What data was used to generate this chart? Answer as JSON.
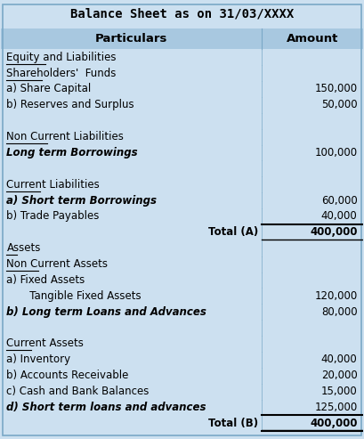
{
  "title": "Balance Sheet as on 31/03/XXXX",
  "headers": [
    "Particulars",
    "Amount"
  ],
  "rows": [
    {
      "label": "Equity and Liabilities",
      "value": "",
      "style": "underline",
      "indent": 0
    },
    {
      "label": "Shareholders'  Funds",
      "value": "",
      "style": "underline",
      "indent": 0
    },
    {
      "label": "a) Share Capital",
      "value": "150,000",
      "style": "normal",
      "indent": 0
    },
    {
      "label": "b) Reserves and Surplus",
      "value": "50,000",
      "style": "normal",
      "indent": 0
    },
    {
      "label": "",
      "value": "",
      "style": "normal",
      "indent": 0
    },
    {
      "label": "Non Current Liabilities",
      "value": "",
      "style": "underline",
      "indent": 0
    },
    {
      "label": "Long term Borrowings",
      "value": "100,000",
      "style": "bold_italic",
      "indent": 0
    },
    {
      "label": "",
      "value": "",
      "style": "normal",
      "indent": 0
    },
    {
      "label": "Current Liabilities",
      "value": "",
      "style": "underline",
      "indent": 0
    },
    {
      "label": "a) Short term Borrowings",
      "value": "60,000",
      "style": "bold_italic",
      "indent": 0
    },
    {
      "label": "b) Trade Payables",
      "value": "40,000",
      "style": "normal",
      "indent": 0
    },
    {
      "label": "Total (A)",
      "value": "400,000",
      "style": "total",
      "indent": 0
    },
    {
      "label": "Assets",
      "value": "",
      "style": "underline",
      "indent": 0
    },
    {
      "label": "Non Current Assets",
      "value": "",
      "style": "underline",
      "indent": 0
    },
    {
      "label": "a) Fixed Assets",
      "value": "",
      "style": "normal",
      "indent": 0
    },
    {
      "label": "   Tangible Fixed Assets",
      "value": "120,000",
      "style": "normal",
      "indent": 1
    },
    {
      "label": "b) Long term Loans and Advances",
      "value": "80,000",
      "style": "bold_italic",
      "indent": 0
    },
    {
      "label": "",
      "value": "",
      "style": "normal",
      "indent": 0
    },
    {
      "label": "Current Assets",
      "value": "",
      "style": "underline",
      "indent": 0
    },
    {
      "label": "a) Inventory",
      "value": "40,000",
      "style": "normal",
      "indent": 0
    },
    {
      "label": "b) Accounts Receivable",
      "value": "20,000",
      "style": "normal",
      "indent": 0
    },
    {
      "label": "c) Cash and Bank Balances",
      "value": "15,000",
      "style": "normal",
      "indent": 0
    },
    {
      "label": "d) Short term loans and advances",
      "value": "125,000",
      "style": "bold_italic",
      "indent": 0
    },
    {
      "label": "Total (B)",
      "value": "400,000",
      "style": "total",
      "indent": 0
    }
  ],
  "bg_color": "#cce0f0",
  "header_bg": "#a8c8e0",
  "total_line_color": "#000000",
  "title_color": "#000000",
  "text_color": "#000000",
  "col_split": 0.72,
  "figsize": [
    4.09,
    4.93
  ],
  "dpi": 100
}
